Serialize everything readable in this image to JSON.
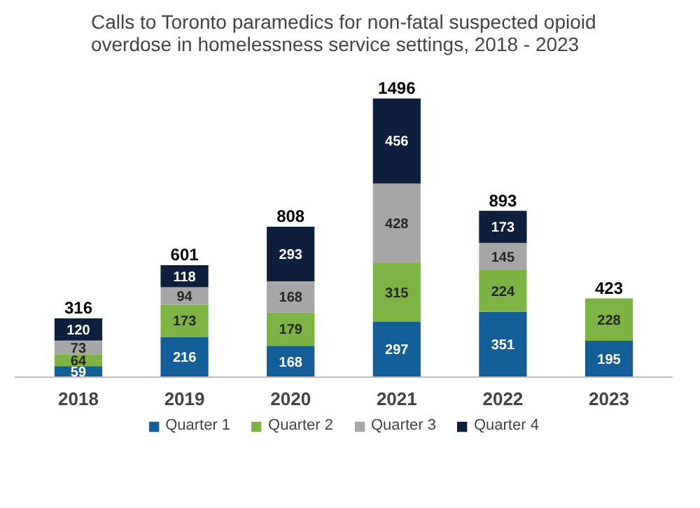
{
  "chart_data": {
    "type": "bar",
    "title": "Calls to Toronto paramedics for non-fatal suspected opioid overdose in homelessness service settings, 2018 - 2023",
    "categories": [
      "2018",
      "2019",
      "2020",
      "2021",
      "2022",
      "2023"
    ],
    "stacked": true,
    "series": [
      {
        "name": "Quarter 1",
        "color": "#135e96",
        "values": [
          59,
          216,
          168,
          297,
          351,
          195
        ]
      },
      {
        "name": "Quarter 2",
        "color": "#7cb342",
        "values": [
          64,
          173,
          179,
          315,
          224,
          228
        ]
      },
      {
        "name": "Quarter 3",
        "color": "#a6a6a6",
        "values": [
          73,
          94,
          168,
          428,
          145,
          null
        ]
      },
      {
        "name": "Quarter 4",
        "color": "#0d1f3c",
        "values": [
          120,
          118,
          293,
          456,
          173,
          null
        ]
      }
    ],
    "totals": [
      "316",
      "601",
      "808",
      "1496",
      "893",
      "423"
    ],
    "data_labels": true,
    "legend": "bottom",
    "grid": false
  }
}
